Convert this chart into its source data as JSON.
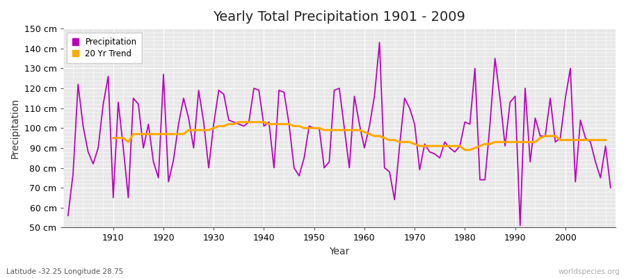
{
  "title": "Yearly Total Precipitation 1901 - 2009",
  "xlabel": "Year",
  "ylabel": "Precipitation",
  "subtitle": "Latitude -32.25 Longitude 28.75",
  "watermark": "worldspecies.org",
  "legend_precipitation": "Precipitation",
  "legend_trend": "20 Yr Trend",
  "precip_color": "#bb00bb",
  "trend_color": "#ffaa00",
  "fig_bg_color": "#ffffff",
  "plot_bg_color": "#e8e8e8",
  "grid_color": "#ffffff",
  "ylim": [
    50,
    150
  ],
  "yticks": [
    50,
    60,
    70,
    80,
    90,
    100,
    110,
    120,
    130,
    140,
    150
  ],
  "xlim": [
    1900,
    2010
  ],
  "xticks": [
    1910,
    1920,
    1930,
    1940,
    1950,
    1960,
    1970,
    1980,
    1990,
    2000
  ],
  "years": [
    1901,
    1902,
    1903,
    1904,
    1905,
    1906,
    1907,
    1908,
    1909,
    1910,
    1911,
    1912,
    1913,
    1914,
    1915,
    1916,
    1917,
    1918,
    1919,
    1920,
    1921,
    1922,
    1923,
    1924,
    1925,
    1926,
    1927,
    1928,
    1929,
    1930,
    1931,
    1932,
    1933,
    1934,
    1935,
    1936,
    1937,
    1938,
    1939,
    1940,
    1941,
    1942,
    1943,
    1944,
    1945,
    1946,
    1947,
    1948,
    1949,
    1950,
    1951,
    1952,
    1953,
    1954,
    1955,
    1956,
    1957,
    1958,
    1959,
    1960,
    1961,
    1962,
    1963,
    1964,
    1965,
    1966,
    1967,
    1968,
    1969,
    1970,
    1971,
    1972,
    1973,
    1974,
    1975,
    1976,
    1977,
    1978,
    1979,
    1980,
    1981,
    1982,
    1983,
    1984,
    1985,
    1986,
    1987,
    1988,
    1989,
    1990,
    1991,
    1992,
    1993,
    1994,
    1995,
    1996,
    1997,
    1998,
    1999,
    2000,
    2001,
    2002,
    2003,
    2004,
    2005,
    2006,
    2007,
    2008,
    2009
  ],
  "precipitation": [
    56,
    77,
    122,
    101,
    88,
    82,
    90,
    112,
    126,
    65,
    113,
    90,
    65,
    115,
    112,
    90,
    102,
    83,
    75,
    127,
    73,
    84,
    102,
    115,
    105,
    90,
    119,
    103,
    80,
    102,
    119,
    117,
    104,
    103,
    102,
    101,
    103,
    120,
    119,
    101,
    103,
    80,
    119,
    118,
    102,
    80,
    76,
    85,
    101,
    100,
    100,
    80,
    83,
    119,
    120,
    100,
    80,
    116,
    102,
    90,
    101,
    116,
    143,
    80,
    78,
    64,
    91,
    115,
    110,
    102,
    79,
    92,
    88,
    87,
    85,
    93,
    90,
    88,
    91,
    103,
    102,
    130,
    74,
    74,
    102,
    135,
    115,
    91,
    113,
    116,
    51,
    120,
    83,
    105,
    96,
    96,
    115,
    93,
    95,
    115,
    130,
    73,
    104,
    95,
    93,
    83,
    75,
    91,
    70
  ],
  "trend": [
    null,
    null,
    null,
    null,
    null,
    null,
    null,
    null,
    null,
    95,
    95,
    95,
    93,
    97,
    97,
    97,
    97,
    97,
    97,
    97,
    97,
    97,
    97,
    97,
    99,
    99,
    99,
    99,
    99,
    100,
    101,
    101,
    102,
    102,
    103,
    103,
    103,
    103,
    103,
    103,
    102,
    102,
    102,
    102,
    102,
    101,
    101,
    100,
    100,
    100,
    100,
    99,
    99,
    99,
    99,
    99,
    99,
    99,
    99,
    98,
    97,
    96,
    96,
    95,
    94,
    94,
    93,
    93,
    93,
    92,
    91,
    91,
    91,
    91,
    91,
    91,
    91,
    91,
    91,
    89,
    89,
    90,
    91,
    92,
    92,
    93,
    93,
    93,
    93,
    93,
    93,
    93,
    93,
    93,
    95,
    96,
    96,
    96,
    94,
    94,
    94,
    94,
    94,
    94,
    94,
    94,
    94,
    94,
    null
  ]
}
